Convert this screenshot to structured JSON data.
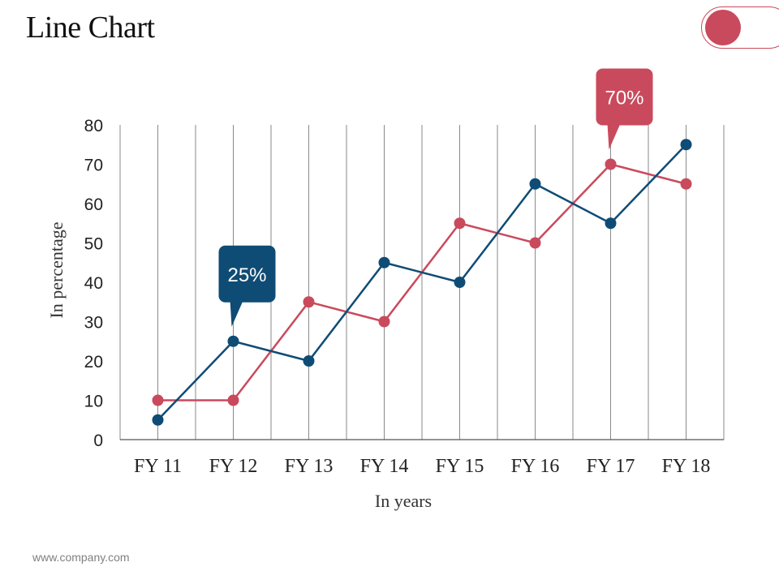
{
  "page": {
    "title": "Line Chart",
    "footer": "www.company.com"
  },
  "colors": {
    "red": "#c94a5c",
    "blue": "#0f4c75",
    "grid": "#8a8a8a"
  },
  "chart_data": {
    "type": "line",
    "title": "",
    "xlabel": "In years",
    "ylabel": "In percentage",
    "categories": [
      "FY 11",
      "FY 12",
      "FY 13",
      "FY 14",
      "FY 15",
      "FY 16",
      "FY 17",
      "FY 18"
    ],
    "ylim": [
      0,
      80
    ],
    "yticks": [
      0,
      10,
      20,
      30,
      40,
      50,
      60,
      70,
      80
    ],
    "grid": "vertical",
    "legend": "none",
    "series": [
      {
        "color": "#c94a5c",
        "values": [
          10,
          10,
          35,
          30,
          55,
          50,
          70,
          65
        ]
      },
      {
        "color": "#0f4c75",
        "values": [
          5,
          25,
          20,
          45,
          40,
          65,
          55,
          75
        ]
      }
    ],
    "annotations": [
      {
        "text": "25%",
        "series": 1,
        "category": "FY 12",
        "color": "#0f4c75"
      },
      {
        "text": "70%",
        "series": 0,
        "category": "FY 17",
        "color": "#c94a5c"
      }
    ]
  }
}
